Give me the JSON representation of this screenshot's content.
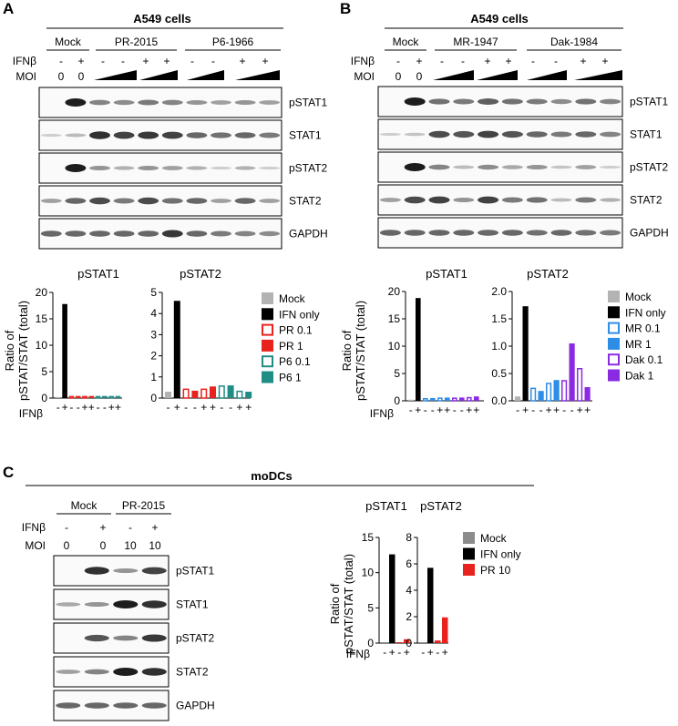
{
  "panels": [
    {
      "letter": "A",
      "cells": "A549 cells",
      "groups": [
        "Mock",
        "PR-2015",
        "P6-1966"
      ],
      "row_labels": [
        "IFNβ",
        "MOI"
      ],
      "ifn_signs": [
        "-",
        "+",
        "-",
        "-",
        "+",
        "+",
        "-",
        "-",
        "+",
        "+"
      ],
      "moi_values": [
        "0",
        "0"
      ],
      "blots": [
        "pSTAT1",
        "STAT1",
        "pSTAT2",
        "STAT2",
        "GAPDH"
      ],
      "ylabel_line1": "Ratio of",
      "ylabel_line2": "pSTAT/STAT (total)",
      "xaxis_label": "IFNβ",
      "legend": [
        {
          "label": "Mock",
          "color": "#b3b3b3",
          "fill": "solid"
        },
        {
          "label": "IFN only",
          "color": "#000000",
          "fill": "solid"
        },
        {
          "label": "PR 0.1",
          "color": "#e8231e",
          "fill": "open"
        },
        {
          "label": "PR 1",
          "color": "#e8231e",
          "fill": "solid"
        },
        {
          "label": "P6 0.1",
          "color": "#1f8c86",
          "fill": "open"
        },
        {
          "label": "P6 1",
          "color": "#1f8c86",
          "fill": "solid"
        }
      ]
    },
    {
      "letter": "B",
      "cells": "A549 cells",
      "groups": [
        "Mock",
        "MR-1947",
        "Dak-1984"
      ],
      "row_labels": [
        "IFNβ",
        "MOI"
      ],
      "ifn_signs": [
        "-",
        "+",
        "-",
        "-",
        "+",
        "+",
        "-",
        "-",
        "+",
        "+"
      ],
      "moi_values": [
        "0",
        "0"
      ],
      "blots": [
        "pSTAT1",
        "STAT1",
        "pSTAT2",
        "STAT2",
        "GAPDH"
      ],
      "ylabel_line1": "Ratio of",
      "ylabel_line2": "pSTAT/STAT (total)",
      "xaxis_label": "IFNβ",
      "legend": [
        {
          "label": "Mock",
          "color": "#b3b3b3",
          "fill": "solid"
        },
        {
          "label": "IFN only",
          "color": "#000000",
          "fill": "solid"
        },
        {
          "label": "MR 0.1",
          "color": "#2e8de6",
          "fill": "open"
        },
        {
          "label": "MR 1",
          "color": "#2e8de6",
          "fill": "solid"
        },
        {
          "label": "Dak 0.1",
          "color": "#8a2be2",
          "fill": "open"
        },
        {
          "label": "Dak 1",
          "color": "#8a2be2",
          "fill": "solid"
        }
      ]
    },
    {
      "letter": "C",
      "cells": "moDCs",
      "groups": [
        "Mock",
        "PR-2015"
      ],
      "row_labels": [
        "IFNβ",
        "MOI"
      ],
      "ifn_signs": [
        "-",
        "+",
        "-",
        "+"
      ],
      "moi_values": [
        "0",
        "0",
        "10",
        "10"
      ],
      "blots": [
        "pSTAT1",
        "STAT1",
        "pSTAT2",
        "STAT2",
        "GAPDH"
      ],
      "ylabel_line1": "Ratio of",
      "ylabel_line2": "pSTAT/STAT (total)",
      "xaxis_label": "IFNβ",
      "legend": [
        {
          "label": "Mock",
          "color": "#8c8c8c",
          "fill": "solid"
        },
        {
          "label": "IFN only",
          "color": "#000000",
          "fill": "solid"
        },
        {
          "label": "PR 10",
          "color": "#e8231e",
          "fill": "solid"
        }
      ]
    }
  ],
  "chart_data": [
    {
      "type": "bar",
      "panel": "A",
      "title": "pSTAT1",
      "ylim": [
        0,
        20
      ],
      "yticks": [
        "0",
        "5",
        "10",
        "15",
        "20"
      ],
      "xtick_labels": [
        "-",
        "+",
        "-",
        "-",
        "+",
        "+",
        "-",
        "-",
        "+",
        "+"
      ],
      "values": [
        0.2,
        17.8,
        0.4,
        0.4,
        0.4,
        0.4,
        0.4,
        0.4,
        0.4,
        0.4
      ],
      "colors": [
        "#b3b3b3",
        "#000000",
        "#e8231e",
        "#e8231e",
        "#e8231e",
        "#e8231e",
        "#1f8c86",
        "#1f8c86",
        "#1f8c86",
        "#1f8c86"
      ],
      "fills": [
        "solid",
        "solid",
        "open",
        "solid",
        "open",
        "solid",
        "open",
        "solid",
        "open",
        "solid"
      ]
    },
    {
      "type": "bar",
      "panel": "A",
      "title": "pSTAT2",
      "ylim": [
        0,
        5
      ],
      "yticks": [
        "0",
        "1",
        "2",
        "3",
        "4",
        "5"
      ],
      "xtick_labels": [
        "-",
        "+",
        "-",
        "-",
        "+",
        "+",
        "-",
        "-",
        "+",
        "+"
      ],
      "values": [
        0.3,
        4.6,
        0.45,
        0.35,
        0.45,
        0.55,
        0.6,
        0.6,
        0.35,
        0.3
      ],
      "colors": [
        "#b3b3b3",
        "#000000",
        "#e8231e",
        "#e8231e",
        "#e8231e",
        "#e8231e",
        "#1f8c86",
        "#1f8c86",
        "#1f8c86",
        "#1f8c86"
      ],
      "fills": [
        "solid",
        "solid",
        "open",
        "solid",
        "open",
        "solid",
        "open",
        "solid",
        "open",
        "solid"
      ]
    },
    {
      "type": "bar",
      "panel": "B",
      "title": "pSTAT1",
      "ylim": [
        0,
        20
      ],
      "yticks": [
        "0",
        "5",
        "10",
        "15",
        "20"
      ],
      "xtick_labels": [
        "-",
        "+",
        "-",
        "-",
        "+",
        "+",
        "-",
        "-",
        "+",
        "+"
      ],
      "values": [
        0.2,
        18.8,
        0.5,
        0.5,
        0.6,
        0.6,
        0.6,
        0.6,
        0.7,
        0.8
      ],
      "colors": [
        "#b3b3b3",
        "#000000",
        "#2e8de6",
        "#2e8de6",
        "#2e8de6",
        "#2e8de6",
        "#8a2be2",
        "#8a2be2",
        "#8a2be2",
        "#8a2be2"
      ],
      "fills": [
        "solid",
        "solid",
        "open",
        "solid",
        "open",
        "solid",
        "open",
        "solid",
        "open",
        "solid"
      ]
    },
    {
      "type": "bar",
      "panel": "B",
      "title": "pSTAT2",
      "ylim": [
        0,
        2.0
      ],
      "yticks": [
        "0.0",
        "0.5",
        "1.0",
        "1.5",
        "2.0"
      ],
      "xtick_labels": [
        "-",
        "+",
        "-",
        "-",
        "+",
        "+",
        "-",
        "-",
        "+",
        "+"
      ],
      "values": [
        0.08,
        1.73,
        0.24,
        0.18,
        0.33,
        0.38,
        0.38,
        1.05,
        0.6,
        0.25
      ],
      "colors": [
        "#b3b3b3",
        "#000000",
        "#2e8de6",
        "#2e8de6",
        "#2e8de6",
        "#2e8de6",
        "#8a2be2",
        "#8a2be2",
        "#8a2be2",
        "#8a2be2"
      ],
      "fills": [
        "solid",
        "solid",
        "open",
        "solid",
        "open",
        "solid",
        "open",
        "solid",
        "open",
        "solid"
      ]
    },
    {
      "type": "bar",
      "panel": "C",
      "title": "pSTAT1",
      "ylim": [
        0,
        15
      ],
      "yticks": [
        "0",
        "5",
        "10",
        "15"
      ],
      "xtick_labels": [
        "-",
        "+",
        "-",
        "+"
      ],
      "values": [
        0.05,
        12.6,
        0.05,
        0.55
      ],
      "colors": [
        "#8c8c8c",
        "#000000",
        "#e8231e",
        "#e8231e"
      ],
      "fills": [
        "solid",
        "solid",
        "solid",
        "solid"
      ]
    },
    {
      "type": "bar",
      "panel": "C",
      "title": "pSTAT2",
      "ylim": [
        0,
        8
      ],
      "yticks": [
        "0",
        "2",
        "4",
        "6",
        "8"
      ],
      "xtick_labels": [
        "-",
        "+",
        "-",
        "+"
      ],
      "values": [
        0.05,
        5.7,
        0.2,
        1.95
      ],
      "colors": [
        "#8c8c8c",
        "#000000",
        "#e8231e",
        "#e8231e"
      ],
      "fills": [
        "solid",
        "solid",
        "solid",
        "solid"
      ]
    }
  ]
}
